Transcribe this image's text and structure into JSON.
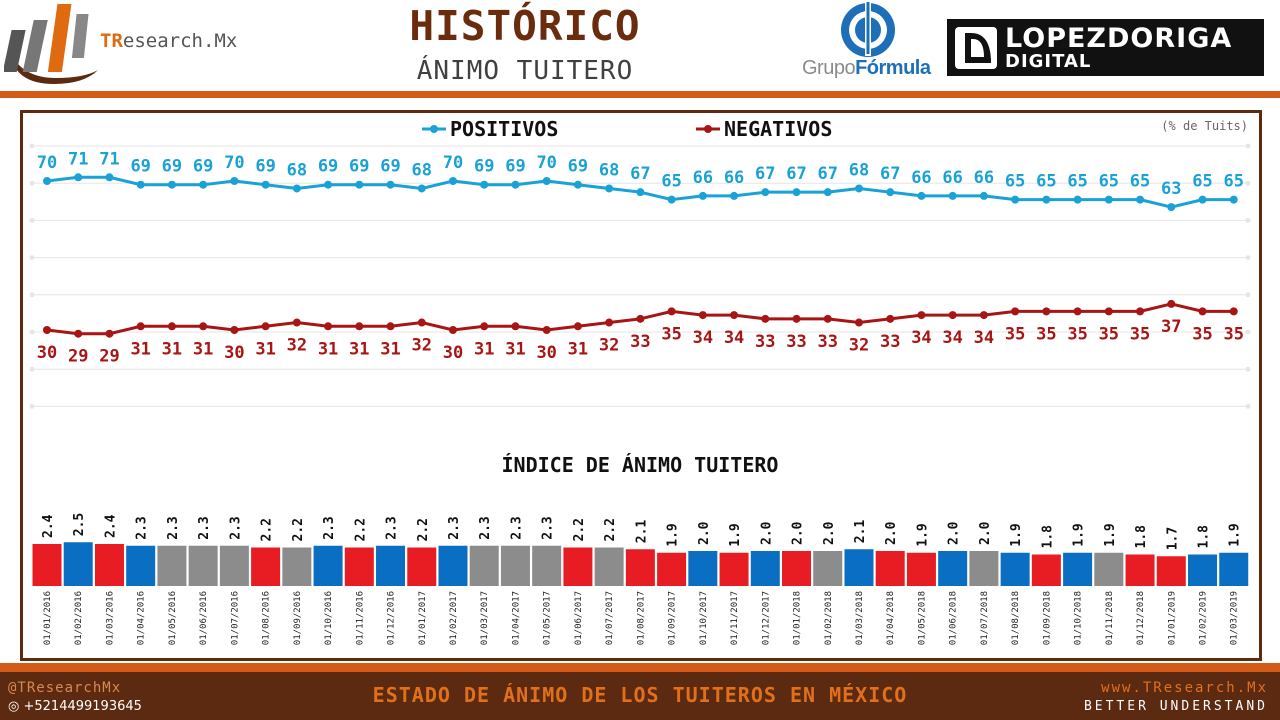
{
  "header": {
    "title": "HISTÓRICO",
    "subtitle": "ÁNIMO TUITERO",
    "brand_prefix": "TR",
    "brand_rest": "esearch.Mx",
    "gf_prefix": "Grupo",
    "gf_bold": "Fórmula",
    "ldd_line1": "LOPEZDORIGA",
    "ldd_line2": "DIGITAL"
  },
  "footer": {
    "handle": "@TResearchMx",
    "phone": "+5214499193645",
    "tagline": "ESTADO DE ÁNIMO DE LOS TUITEROS EN MÉXICO",
    "website": "www.TResearch.Mx",
    "slogan": "BETTER UNDERSTAND"
  },
  "colors": {
    "positive": "#1aa1d6",
    "negative": "#a81515",
    "bar_red": "#e81d24",
    "bar_blue": "#0a6fc2",
    "bar_gray": "#8c8c8c",
    "brown": "#5b2b10",
    "orange": "#d35a17"
  },
  "chart_data": [
    {
      "type": "line",
      "unit_note": "(% de Tuits)",
      "x": [
        "01/01/2016",
        "01/02/2016",
        "01/03/2016",
        "01/04/2016",
        "01/05/2016",
        "01/06/2016",
        "01/07/2016",
        "01/08/2016",
        "01/09/2016",
        "01/10/2016",
        "01/11/2016",
        "01/12/2016",
        "01/01/2017",
        "01/02/2017",
        "01/03/2017",
        "01/04/2017",
        "01/05/2017",
        "01/06/2017",
        "01/07/2017",
        "01/08/2017",
        "01/09/2017",
        "01/10/2017",
        "01/11/2017",
        "01/12/2017",
        "01/01/2018",
        "01/02/2018",
        "01/03/2018",
        "01/04/2018",
        "01/05/2018",
        "01/06/2018",
        "01/07/2018",
        "01/08/2018",
        "01/09/2018",
        "01/10/2018",
        "01/11/2018",
        "01/12/2018",
        "01/01/2019",
        "01/02/2019",
        "01/03/2019"
      ],
      "series": [
        {
          "name": "POSITIVOS",
          "color": "#1aa1d6",
          "values": [
            70,
            71,
            71,
            69,
            69,
            69,
            70,
            69,
            68,
            69,
            69,
            69,
            68,
            70,
            69,
            69,
            70,
            69,
            68,
            67,
            65,
            66,
            66,
            67,
            67,
            67,
            68,
            67,
            66,
            66,
            66,
            65,
            65,
            65,
            65,
            65,
            63,
            65,
            65
          ]
        },
        {
          "name": "NEGATIVOS",
          "color": "#a81515",
          "values": [
            30,
            29,
            29,
            31,
            31,
            31,
            30,
            31,
            32,
            31,
            31,
            31,
            32,
            30,
            31,
            31,
            30,
            31,
            32,
            33,
            35,
            34,
            34,
            33,
            33,
            33,
            32,
            33,
            34,
            34,
            34,
            35,
            35,
            35,
            35,
            35,
            37,
            35,
            35
          ]
        }
      ],
      "grid": true,
      "legend": "top-center"
    },
    {
      "type": "bar",
      "title": "ÍNDICE DE ÁNIMO TUITERO",
      "categories": [
        "01/01/2016",
        "01/02/2016",
        "01/03/2016",
        "01/04/2016",
        "01/05/2016",
        "01/06/2016",
        "01/07/2016",
        "01/08/2016",
        "01/09/2016",
        "01/10/2016",
        "01/11/2016",
        "01/12/2016",
        "01/01/2017",
        "01/02/2017",
        "01/03/2017",
        "01/04/2017",
        "01/05/2017",
        "01/06/2017",
        "01/07/2017",
        "01/08/2017",
        "01/09/2017",
        "01/10/2017",
        "01/11/2017",
        "01/12/2017",
        "01/01/2018",
        "01/02/2018",
        "01/03/2018",
        "01/04/2018",
        "01/05/2018",
        "01/06/2018",
        "01/07/2018",
        "01/08/2018",
        "01/09/2018",
        "01/10/2018",
        "01/11/2018",
        "01/12/2018",
        "01/01/2019",
        "01/02/2019",
        "01/03/2019"
      ],
      "values": [
        "2.4",
        "2.5",
        "2.4",
        "2.3",
        "2.3",
        "2.3",
        "2.3",
        "2.2",
        "2.2",
        "2.3",
        "2.2",
        "2.3",
        "2.2",
        "2.3",
        "2.3",
        "2.3",
        "2.3",
        "2.2",
        "2.2",
        "2.1",
        "1.9",
        "2.0",
        "1.9",
        "2.0",
        "2.0",
        "2.0",
        "2.1",
        "2.0",
        "1.9",
        "2.0",
        "2.0",
        "1.9",
        "1.8",
        "1.9",
        "1.9",
        "1.8",
        "1.7",
        "1.8",
        "1.9"
      ],
      "bar_colors": [
        "red",
        "blue",
        "red",
        "blue",
        "gray",
        "gray",
        "gray",
        "red",
        "gray",
        "blue",
        "red",
        "blue",
        "red",
        "blue",
        "gray",
        "gray",
        "gray",
        "red",
        "gray",
        "red",
        "red",
        "blue",
        "red",
        "blue",
        "red",
        "gray",
        "blue",
        "red",
        "red",
        "blue",
        "gray",
        "blue",
        "red",
        "blue",
        "gray",
        "red",
        "red",
        "blue",
        "blue"
      ]
    }
  ]
}
